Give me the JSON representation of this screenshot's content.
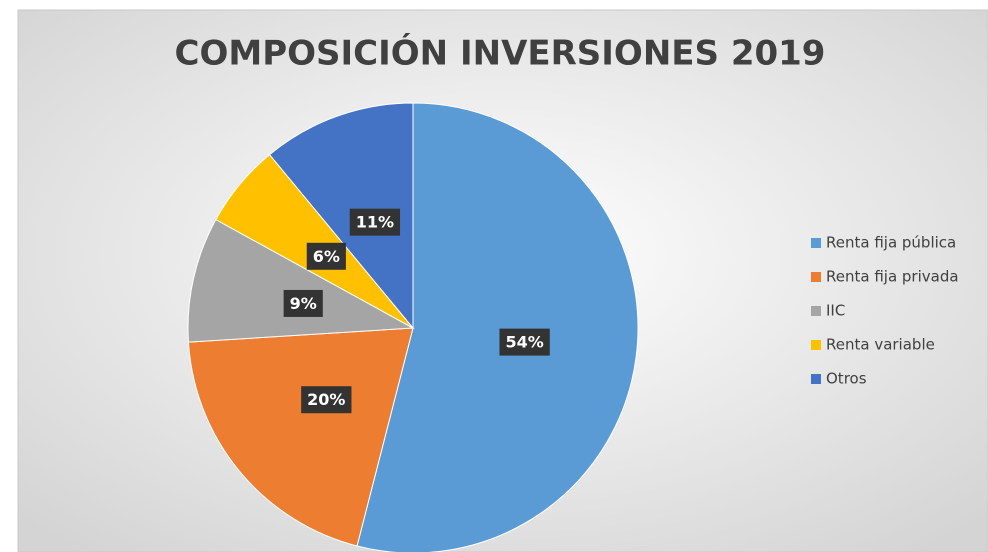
{
  "chart_data": {
    "type": "pie",
    "title": "COMPOSICIÓN INVERSIONES 2019",
    "categories": [
      "Renta fija pública",
      "Renta fija privada",
      "IIC",
      "Renta variable",
      "Otros"
    ],
    "values": [
      54,
      20,
      9,
      6,
      11
    ],
    "value_labels": [
      "54%",
      "20%",
      "9%",
      "6%",
      "11%"
    ],
    "colors": [
      "#5b9bd5",
      "#ed7d31",
      "#a5a5a5",
      "#ffc000",
      "#4472c4"
    ],
    "legend": "right"
  }
}
